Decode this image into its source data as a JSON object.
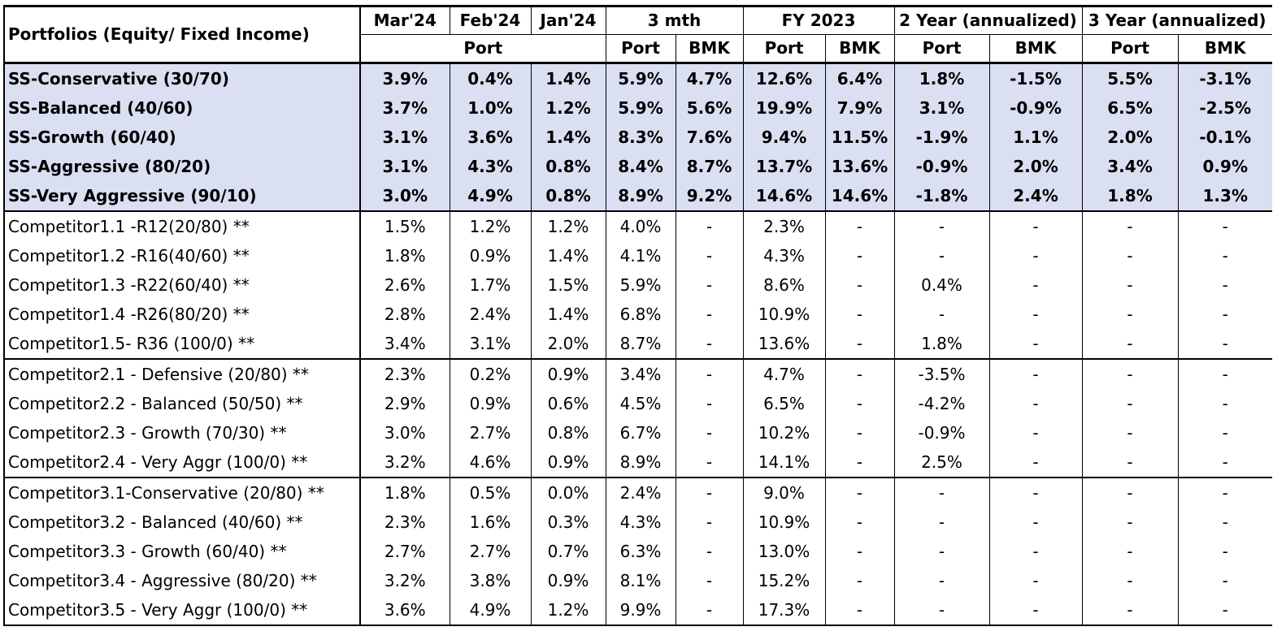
{
  "header": {
    "portfolios_label": "Portfolios (Equity/ Fixed Income)",
    "mar24": "Mar'24",
    "feb24": "Feb'24",
    "jan24": "Jan'24",
    "three_mth": "3 mth",
    "fy2023": "FY 2023",
    "two_year": "2 Year (annualized)",
    "three_year": "3 Year (annualized)",
    "port": "Port",
    "bmk": "BMK"
  },
  "rows": [
    {
      "name": "SS-Conservative (30/70)",
      "values": [
        "3.9%",
        "0.4%",
        "1.4%",
        "5.9%",
        "4.7%",
        "12.6%",
        "6.4%",
        "1.8%",
        "-1.5%",
        "5.5%",
        "-3.1%"
      ]
    },
    {
      "name": "SS-Balanced (40/60)",
      "values": [
        "3.7%",
        "1.0%",
        "1.2%",
        "5.9%",
        "5.6%",
        "19.9%",
        "7.9%",
        "3.1%",
        "-0.9%",
        "6.5%",
        "-2.5%"
      ]
    },
    {
      "name": "SS-Growth (60/40)",
      "values": [
        "3.1%",
        "3.6%",
        "1.4%",
        "8.3%",
        "7.6%",
        "9.4%",
        "11.5%",
        "-1.9%",
        "1.1%",
        "2.0%",
        "-0.1%"
      ]
    },
    {
      "name": "SS-Aggressive (80/20)",
      "values": [
        "3.1%",
        "4.3%",
        "0.8%",
        "8.4%",
        "8.7%",
        "13.7%",
        "13.6%",
        "-0.9%",
        "2.0%",
        "3.4%",
        "0.9%"
      ]
    },
    {
      "name": "SS-Very Aggressive (90/10)",
      "values": [
        "3.0%",
        "4.9%",
        "0.8%",
        "8.9%",
        "9.2%",
        "14.6%",
        "14.6%",
        "-1.8%",
        "2.4%",
        "1.8%",
        "1.3%"
      ]
    },
    {
      "name": "Competitor1.1 -R12(20/80) **",
      "values": [
        "1.5%",
        "1.2%",
        "1.2%",
        "4.0%",
        "-",
        "2.3%",
        "-",
        "-",
        "-",
        "-",
        "-"
      ]
    },
    {
      "name": "Competitor1.2 -R16(40/60) **",
      "values": [
        "1.8%",
        "0.9%",
        "1.4%",
        "4.1%",
        "-",
        "4.3%",
        "-",
        "-",
        "-",
        "-",
        "-"
      ]
    },
    {
      "name": "Competitor1.3 -R22(60/40) **",
      "values": [
        "2.6%",
        "1.7%",
        "1.5%",
        "5.9%",
        "-",
        "8.6%",
        "-",
        "0.4%",
        "-",
        "-",
        "-"
      ]
    },
    {
      "name": "Competitor1.4 -R26(80/20) **",
      "values": [
        "2.8%",
        "2.4%",
        "1.4%",
        "6.8%",
        "-",
        "10.9%",
        "-",
        "-",
        "-",
        "-",
        "-"
      ]
    },
    {
      "name": "Competitor1.5- R36 (100/0) **",
      "values": [
        "3.4%",
        "3.1%",
        "2.0%",
        "8.7%",
        "-",
        "13.6%",
        "-",
        "1.8%",
        "-",
        "-",
        "-"
      ]
    },
    {
      "name": "Competitor2.1  - Defensive  (20/80) **",
      "values": [
        "2.3%",
        "0.2%",
        "0.9%",
        "3.4%",
        "-",
        "4.7%",
        "-",
        "-3.5%",
        "-",
        "-",
        "-"
      ]
    },
    {
      "name": "Competitor2.2  - Balanced (50/50) **",
      "values": [
        "2.9%",
        "0.9%",
        "0.6%",
        "4.5%",
        "-",
        "6.5%",
        "-",
        "-4.2%",
        "-",
        "-",
        "-"
      ]
    },
    {
      "name": "Competitor2.3  - Growth  (70/30) **",
      "values": [
        "3.0%",
        "2.7%",
        "0.8%",
        "6.7%",
        "-",
        "10.2%",
        "-",
        "-0.9%",
        "-",
        "-",
        "-"
      ]
    },
    {
      "name": "Competitor2.4  - Very Aggr  (100/0) **",
      "values": [
        "3.2%",
        "4.6%",
        "0.9%",
        "8.9%",
        "-",
        "14.1%",
        "-",
        "2.5%",
        "-",
        "-",
        "-"
      ]
    },
    {
      "name": "Competitor3.1-Conservative (20/80) **",
      "values": [
        "1.8%",
        "0.5%",
        "0.0%",
        "2.4%",
        "-",
        "9.0%",
        "-",
        "-",
        "-",
        "-",
        "-"
      ]
    },
    {
      "name": "Competitor3.2 - Balanced  (40/60) **",
      "values": [
        "2.3%",
        "1.6%",
        "0.3%",
        "4.3%",
        "-",
        "10.9%",
        "-",
        "-",
        "-",
        "-",
        "-"
      ]
    },
    {
      "name": "Competitor3.3 - Growth  (60/40) **",
      "values": [
        "2.7%",
        "2.7%",
        "0.7%",
        "6.3%",
        "-",
        "13.0%",
        "-",
        "-",
        "-",
        "-",
        "-"
      ]
    },
    {
      "name": "Competitor3.4 - Aggressive  (80/20) **",
      "values": [
        "3.2%",
        "3.8%",
        "0.9%",
        "8.1%",
        "-",
        "15.2%",
        "-",
        "-",
        "-",
        "-",
        "-"
      ]
    },
    {
      "name": "Competitor3.5  - Very Aggr (100/0) **",
      "values": [
        "3.6%",
        "4.9%",
        "1.2%",
        "9.9%",
        "-",
        "17.3%",
        "-",
        "-",
        "-",
        "-",
        "-"
      ]
    }
  ]
}
